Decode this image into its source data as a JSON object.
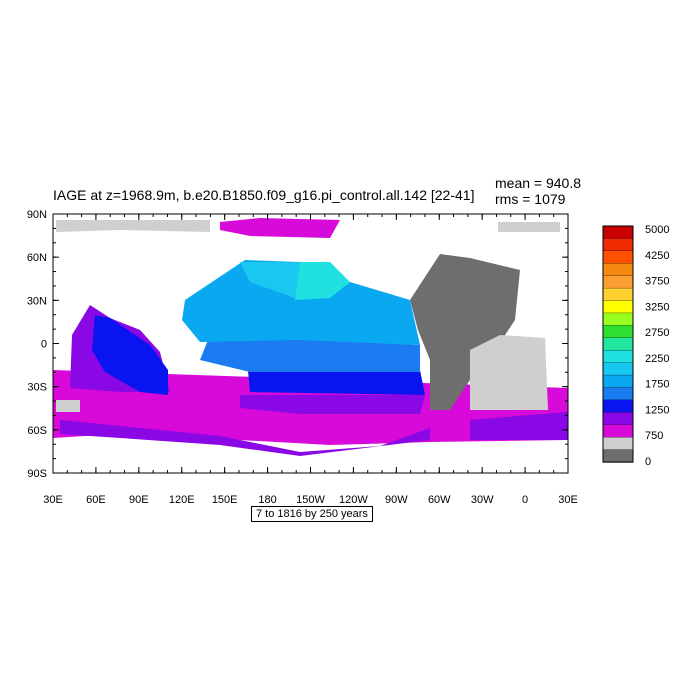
{
  "title": "IAGE at z=1968.9m, b.e20.B1850.f09_g16.pi_control.all.142 [22-41]",
  "stats": {
    "mean": "mean = 940.8",
    "rms": "rms = 1079"
  },
  "range_label": "7 to 1816 by 250 years",
  "map": {
    "lat_ticks": [
      "90N",
      "60N",
      "30N",
      "0",
      "30S",
      "60S",
      "90S"
    ],
    "lon_ticks": [
      "30E",
      "60E",
      "90E",
      "120E",
      "150E",
      "180",
      "150W",
      "120W",
      "90W",
      "60W",
      "30W",
      "0",
      "30E"
    ]
  },
  "colorbar": {
    "labels": [
      "5000",
      "4250",
      "3750",
      "3250",
      "2750",
      "2250",
      "1750",
      "1250",
      "750",
      "0"
    ],
    "colors": [
      "#c80000",
      "#ee2a00",
      "#ff5000",
      "#f58a10",
      "#faa032",
      "#ffd030",
      "#ffff00",
      "#98ff20",
      "#30e030",
      "#20e6a0",
      "#20e0e0",
      "#18c8f0",
      "#0aa8f0",
      "#1a7cf0",
      "#0a14f0",
      "#8a08e6",
      "#d70ad9",
      "#cfcfcf",
      "#6e6e6e"
    ]
  },
  "regions": {
    "ocean_colors": {
      "c250": "#d70ad9",
      "c500": "#8a08e6",
      "c750": "#0a14f0",
      "c1000": "#1a7cf0",
      "c1250": "#0aa8f0",
      "c1500": "#18c8f0",
      "c1750": "#20e0e0",
      "missing_light": "#cfcfcf",
      "missing_dark": "#6e6e6e",
      "land": "#ffffff"
    }
  }
}
